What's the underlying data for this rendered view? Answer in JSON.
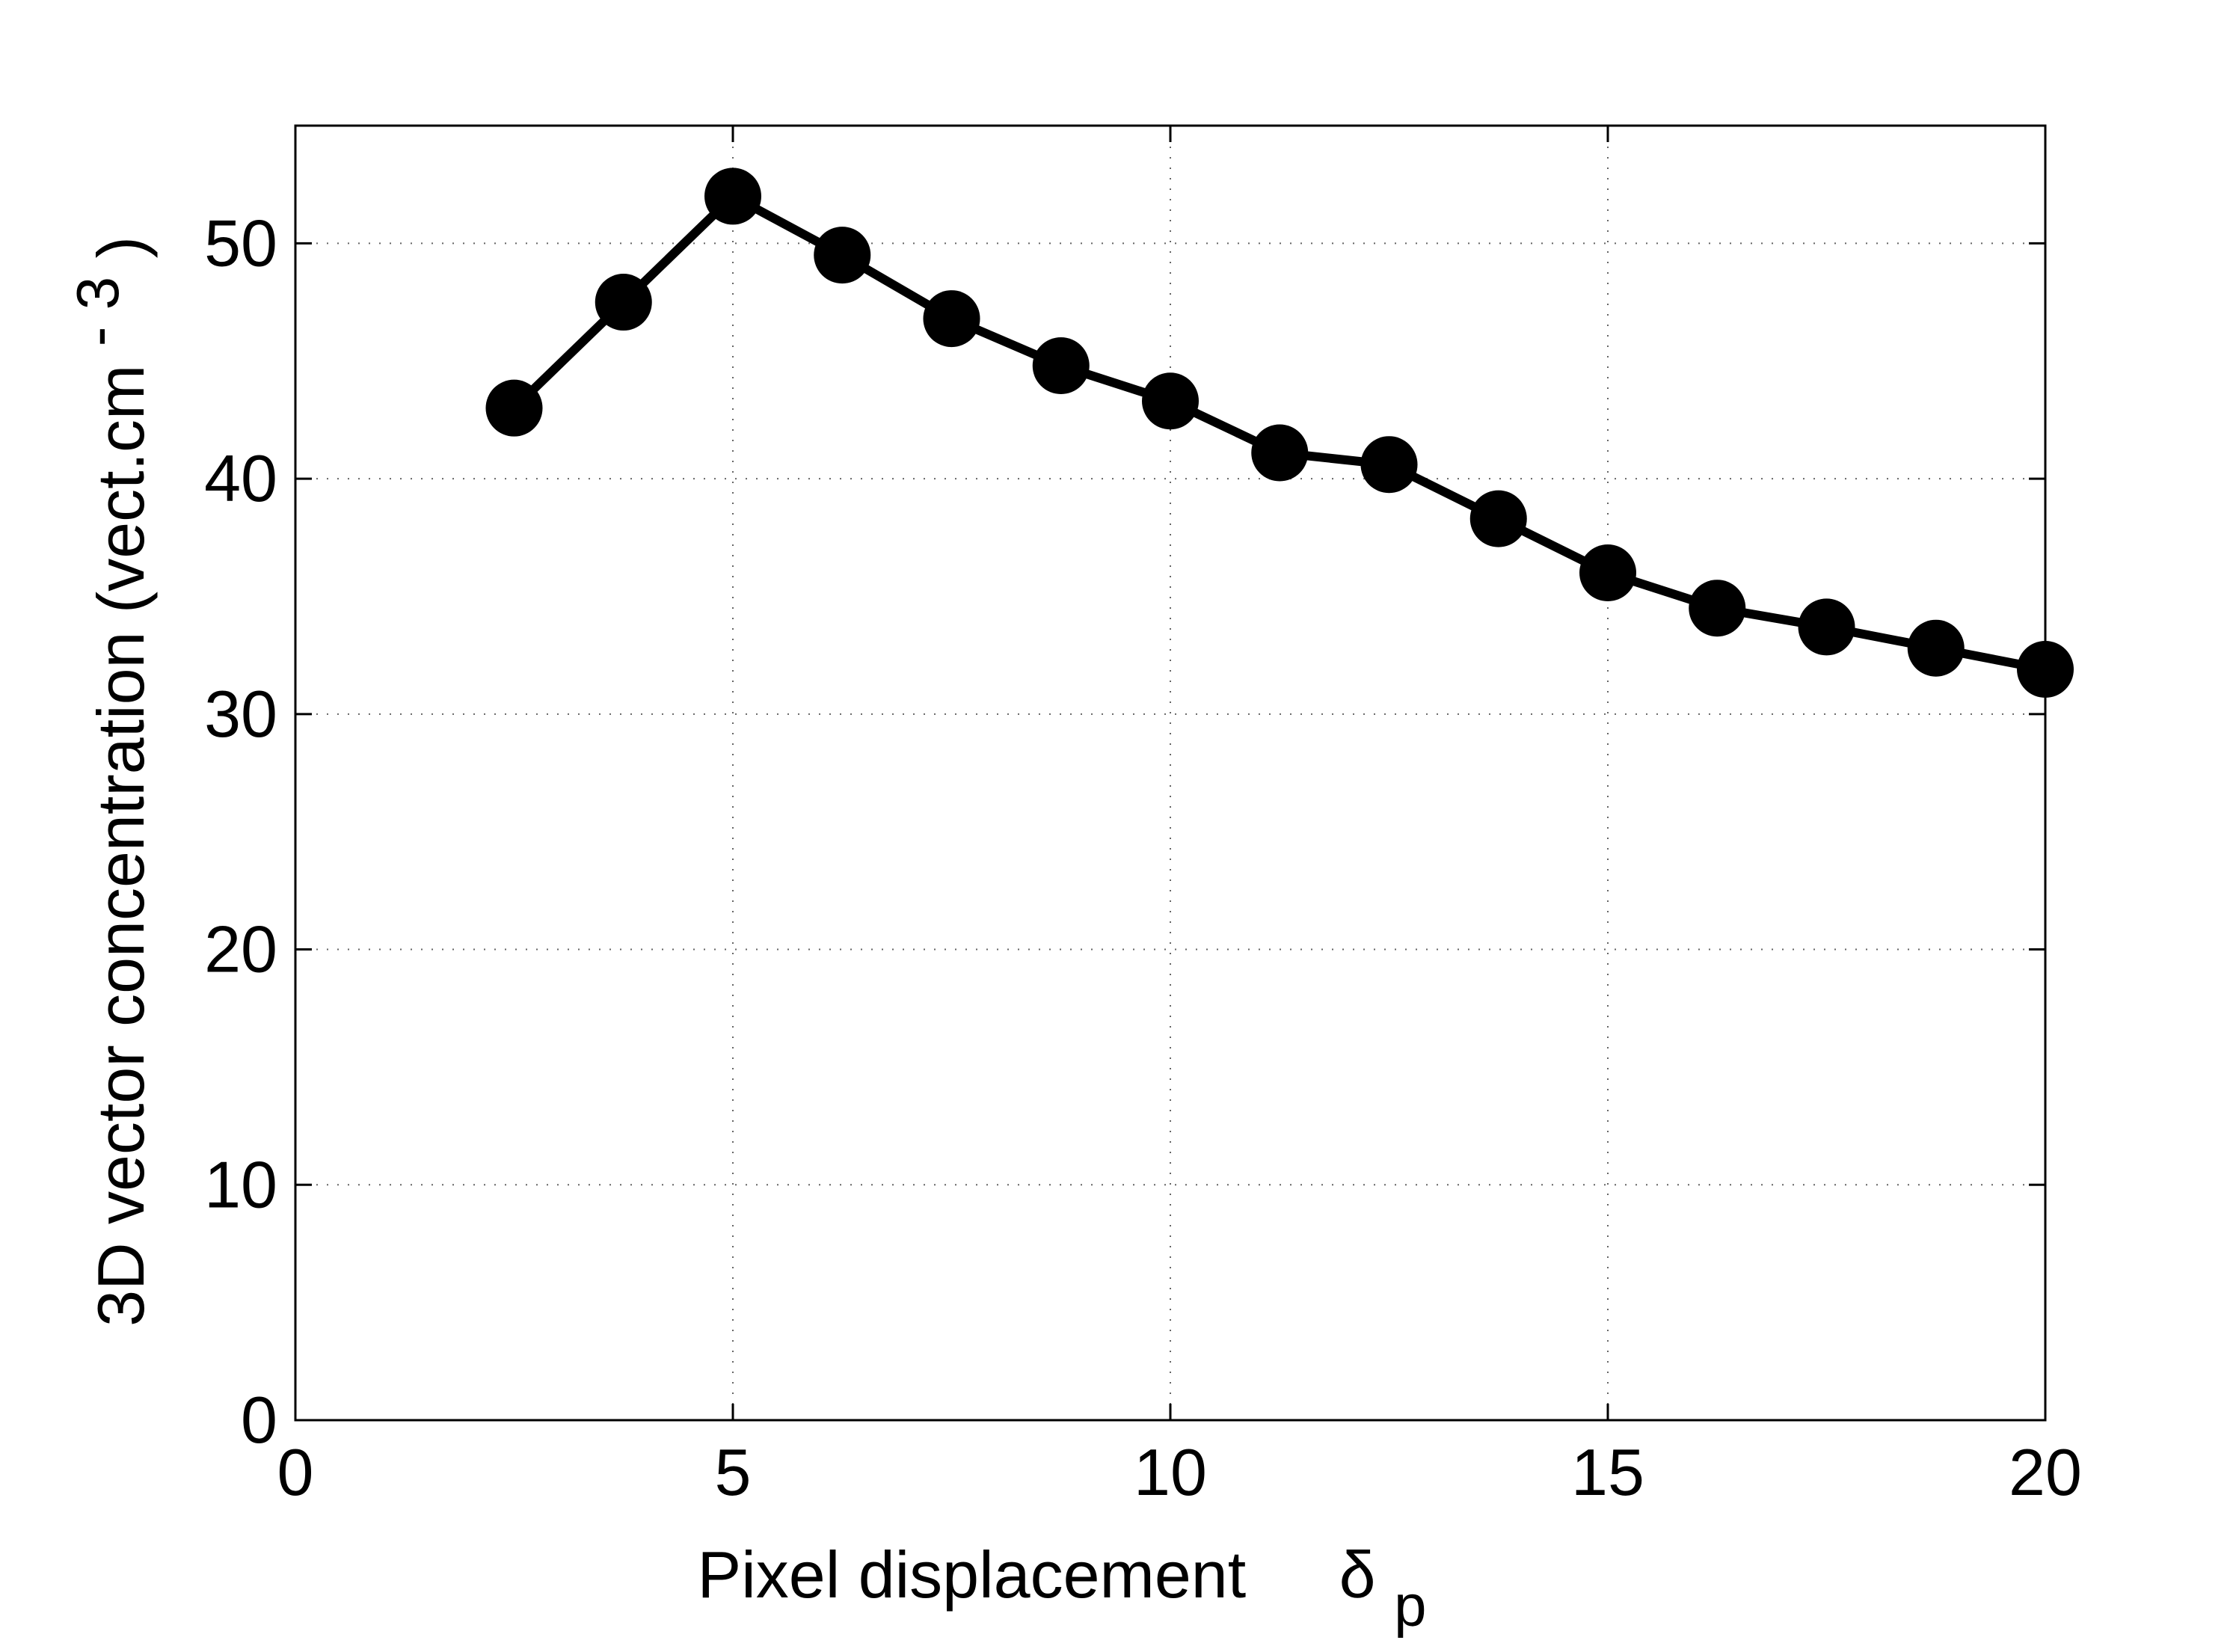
{
  "colors": {
    "line": "#000000",
    "marker": "#000000",
    "grid": "#666666",
    "background": "#ffffff"
  },
  "chart_data": {
    "type": "line",
    "title": "",
    "xlabel": "Pixel displacement",
    "xlabel_symbol": "δ",
    "xlabel_subscript": "p",
    "ylabel": "3D vector concentration (vect.cm",
    "ylabel_superscript": "- 3",
    "ylabel_close": ")",
    "xlim": [
      0,
      20
    ],
    "ylim": [
      0,
      55
    ],
    "xticks": [
      0,
      5,
      10,
      15,
      20
    ],
    "yticks": [
      0,
      10,
      20,
      30,
      40,
      50
    ],
    "xtick_labels": [
      "0",
      "5",
      "10",
      "15",
      "20"
    ],
    "ytick_labels": [
      "0",
      "10",
      "20",
      "30",
      "40",
      "50"
    ],
    "grid": true,
    "grid_style": "dotted",
    "legend": "none",
    "series": [
      {
        "marker": "filled-circle",
        "x": [
          2.5,
          3.75,
          5.0,
          6.25,
          7.5,
          8.75,
          10.0,
          11.25,
          12.5,
          13.75,
          15.0,
          16.25,
          17.5,
          18.75,
          20.0
        ],
        "y": [
          43.0,
          47.5,
          52.0,
          49.5,
          46.8,
          44.8,
          43.3,
          41.1,
          40.6,
          38.3,
          36.0,
          34.5,
          33.7,
          32.8,
          31.9
        ]
      }
    ]
  }
}
